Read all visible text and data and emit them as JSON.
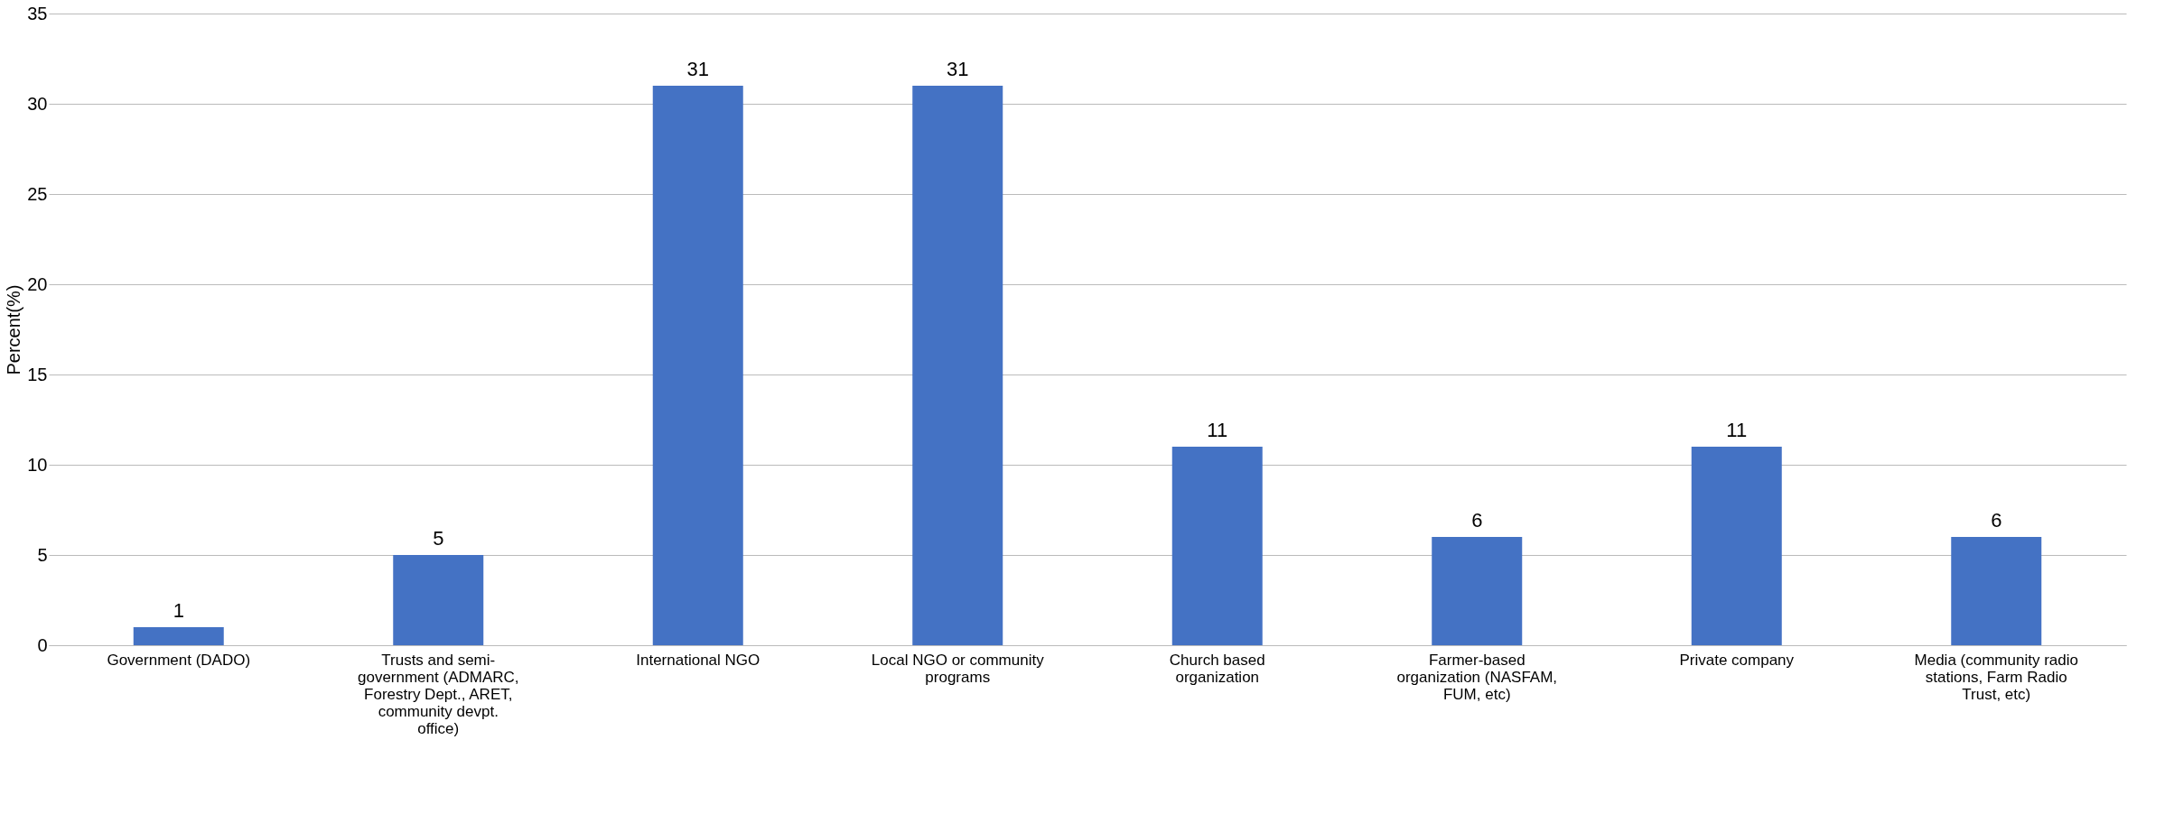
{
  "chart_data": {
    "type": "bar",
    "ylabel": "Percent(%)",
    "categories": [
      "Government (DADO)",
      "Trusts and semi-government (ADMARC, Forestry Dept., ARET, community devpt. office)",
      "International NGO",
      "Local NGO or community programs",
      "Church based organization",
      "Farmer-based organization (NASFAM, FUM, etc)",
      "Private company",
      "Media (community radio stations, Farm Radio Trust, etc)"
    ],
    "values": [
      1,
      5,
      31,
      31,
      11,
      6,
      11,
      6
    ],
    "color": "#4472c4",
    "ylim": [
      0,
      35
    ],
    "yticks": [
      0,
      5,
      10,
      15,
      20,
      25,
      30,
      35
    ],
    "grid": "y",
    "data_labels": true
  }
}
